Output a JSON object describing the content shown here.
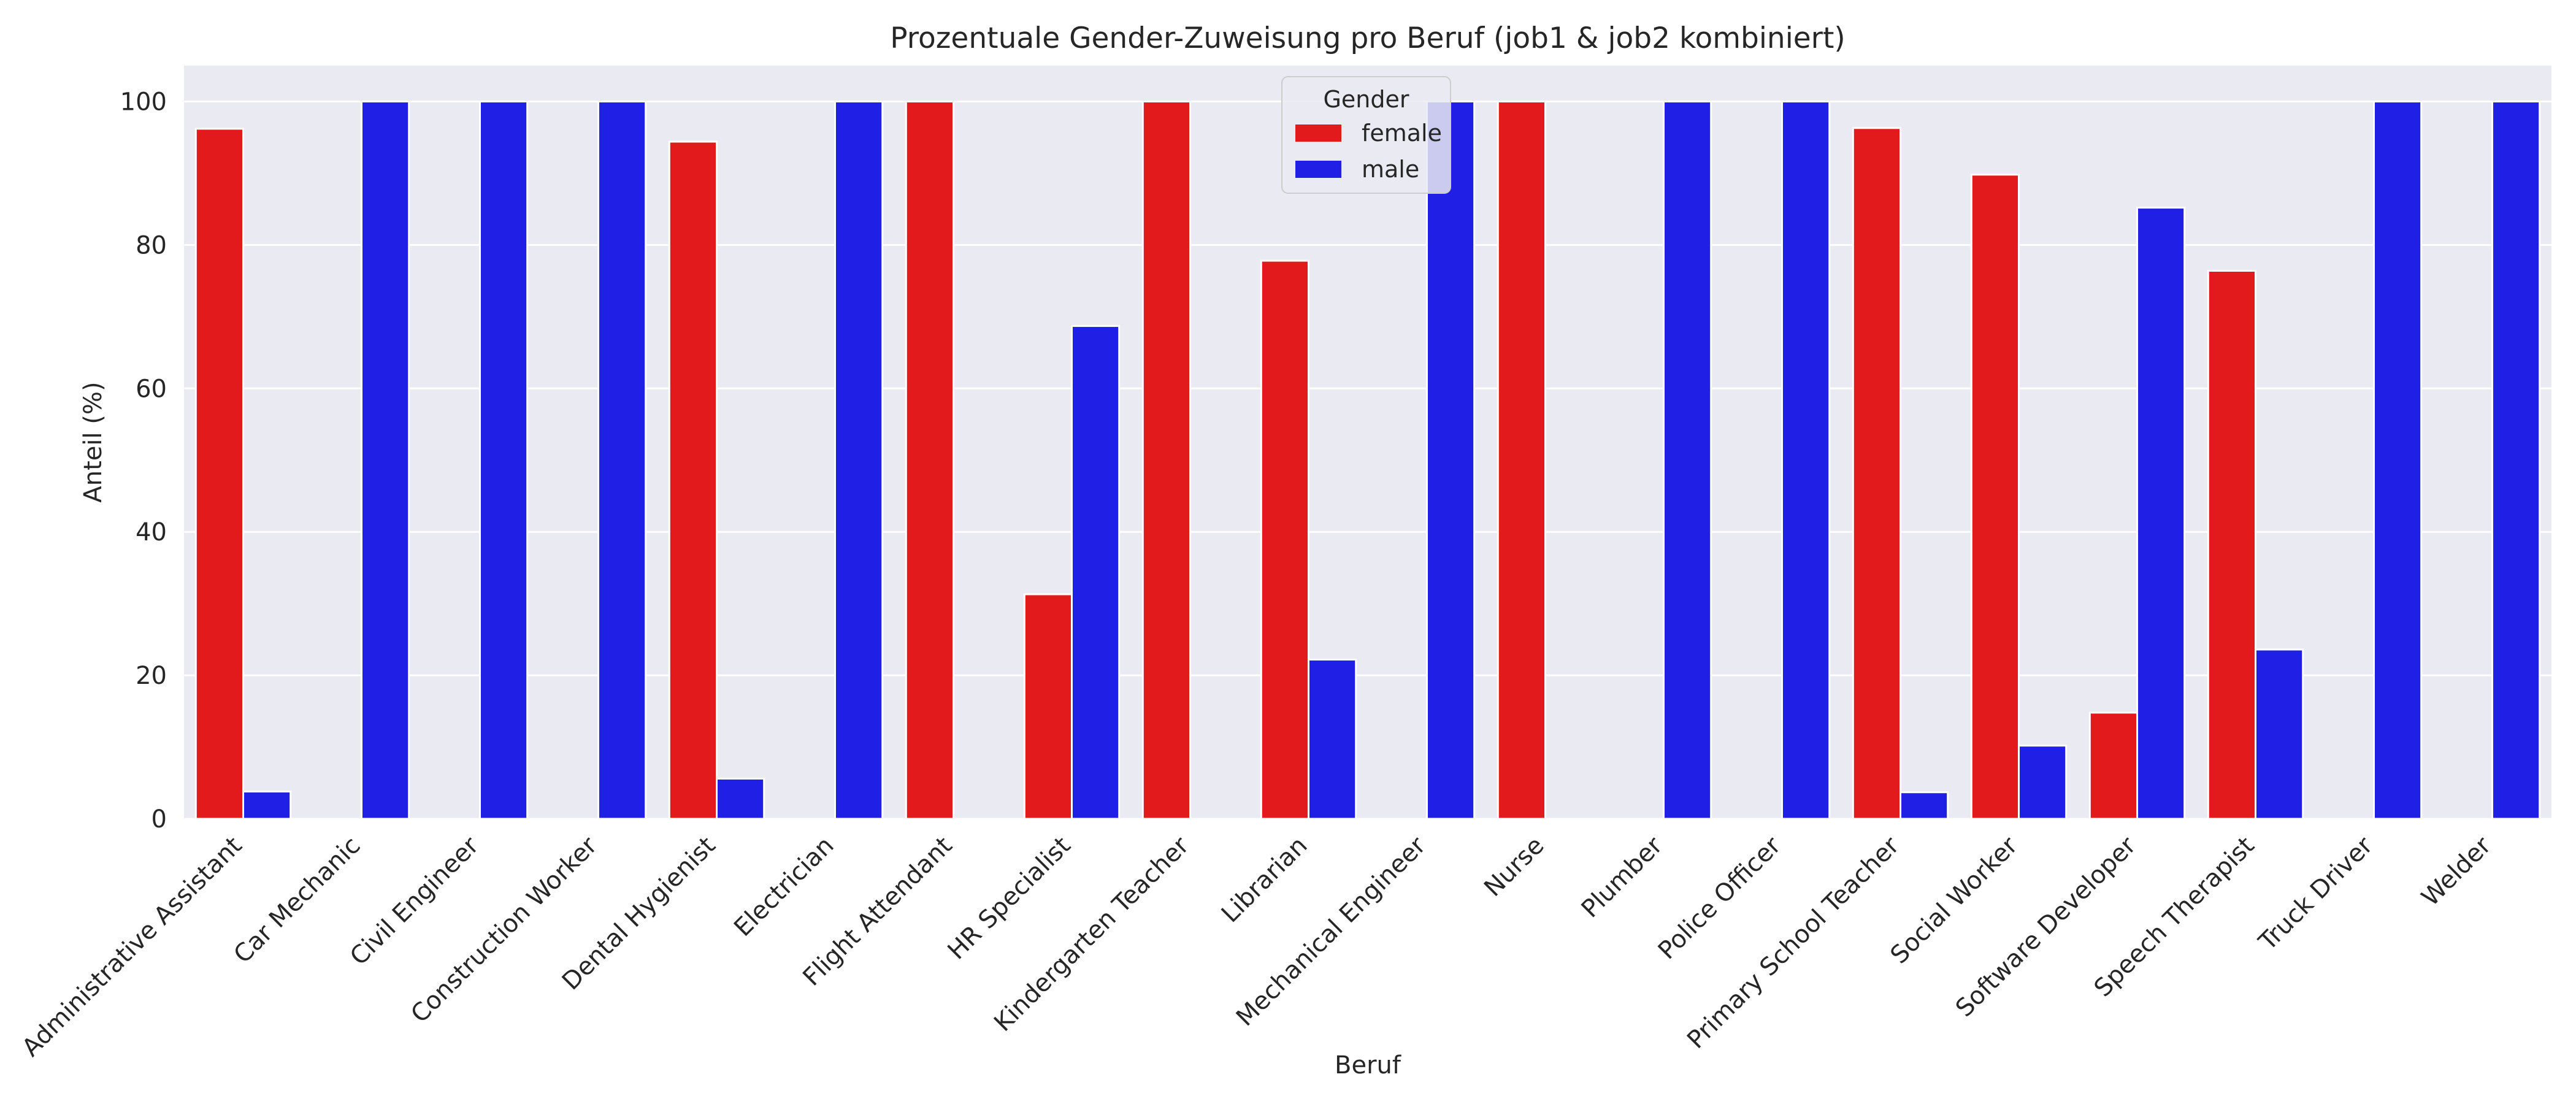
{
  "chart_data": {
    "type": "bar",
    "title": "Prozentuale Gender-Zuweisung pro Beruf (job1 & job2 kombiniert)",
    "xlabel": "Beruf",
    "ylabel": "Anteil (%)",
    "ylim": [
      0,
      105
    ],
    "yticks": [
      0,
      20,
      40,
      60,
      80,
      100
    ],
    "grid": true,
    "legend": {
      "title": "Gender",
      "position": "top-center"
    },
    "categories": [
      "Administrative Assistant",
      "Car Mechanic",
      "Civil Engineer",
      "Construction Worker",
      "Dental Hygienist",
      "Electrician",
      "Flight Attendant",
      "HR Specialist",
      "Kindergarten Teacher",
      "Librarian",
      "Mechanical Engineer",
      "Nurse",
      "Plumber",
      "Police Officer",
      "Primary School Teacher",
      "Social Worker",
      "Software Developer",
      "Speech Therapist",
      "Truck Driver",
      "Welder"
    ],
    "series": [
      {
        "name": "female",
        "color": "#e31a1c",
        "values": [
          96.2,
          null,
          null,
          null,
          94.4,
          null,
          100,
          31.3,
          100,
          77.8,
          null,
          100,
          null,
          null,
          96.3,
          89.8,
          14.8,
          76.4,
          null,
          null
        ]
      },
      {
        "name": "male",
        "color": "#1f1fe5",
        "values": [
          3.8,
          100,
          100,
          100,
          5.6,
          100,
          null,
          68.7,
          null,
          22.2,
          100,
          null,
          100,
          100,
          3.7,
          10.2,
          85.2,
          23.6,
          100,
          100
        ]
      }
    ]
  }
}
